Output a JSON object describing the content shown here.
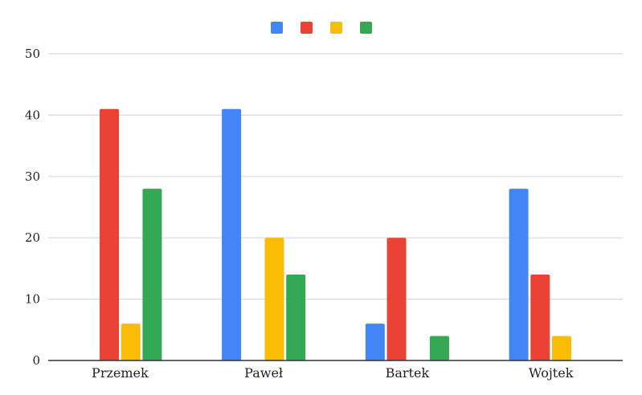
{
  "chart_data": {
    "type": "bar",
    "categories": [
      "Przemek",
      "Paweł",
      "Bartek",
      "Wojtek"
    ],
    "series": [
      {
        "color": "#4285F4",
        "values": [
          0,
          41,
          6,
          28
        ]
      },
      {
        "color": "#EA4335",
        "values": [
          41,
          0,
          20,
          14
        ]
      },
      {
        "color": "#FBBC04",
        "values": [
          6,
          20,
          0,
          4
        ]
      },
      {
        "color": "#34A853",
        "values": [
          28,
          14,
          4,
          0
        ]
      }
    ],
    "ylim": [
      0,
      50
    ],
    "yticks": [
      "0",
      "10",
      "20",
      "30",
      "40",
      "50"
    ],
    "grid": true,
    "legend": "top-center"
  }
}
